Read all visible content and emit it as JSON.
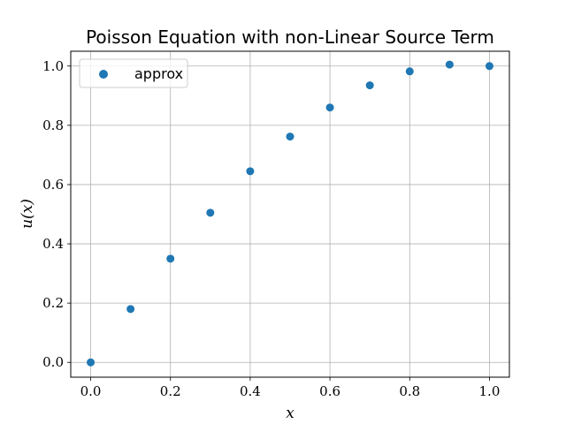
{
  "chart_data": {
    "type": "scatter",
    "title": "Poisson Equation with non-Linear Source Term",
    "xlabel": "x",
    "ylabel": "u(x)",
    "xlim": [
      -0.05,
      1.05
    ],
    "ylim": [
      -0.05,
      1.05
    ],
    "xticks": [
      0.0,
      0.2,
      0.4,
      0.6,
      0.8,
      1.0
    ],
    "yticks": [
      0.0,
      0.2,
      0.4,
      0.6,
      0.8,
      1.0
    ],
    "xtick_labels": [
      "0.0",
      "0.2",
      "0.4",
      "0.6",
      "0.8",
      "1.0"
    ],
    "ytick_labels": [
      "0.0",
      "0.2",
      "0.4",
      "0.6",
      "0.8",
      "1.0"
    ],
    "grid": true,
    "legend": "top-left",
    "series": [
      {
        "name": "approx",
        "color": "#1f77b4",
        "x": [
          0.0,
          0.1,
          0.2,
          0.3,
          0.4,
          0.5,
          0.6,
          0.7,
          0.8,
          0.9,
          1.0
        ],
        "y": [
          0.0,
          0.18,
          0.35,
          0.505,
          0.645,
          0.762,
          0.86,
          0.935,
          0.982,
          1.005,
          1.0
        ]
      }
    ]
  }
}
